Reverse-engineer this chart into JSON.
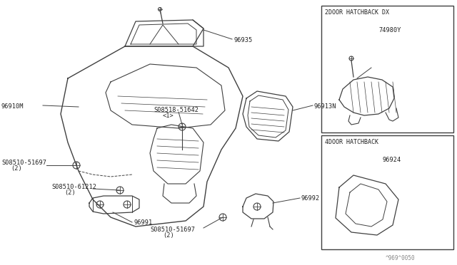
{
  "bg_color": "#ffffff",
  "line_color": "#404040",
  "text_color": "#222222",
  "watermark": "^969^0050",
  "inset1_title": "2DOOR HATCHBACK DX",
  "inset1_label": "74980Y",
  "inset2_title": "4DOOR HATCHBACK",
  "inset2_label": "96924",
  "label_96935": "96935",
  "label_96910M": "96910M",
  "label_08518": "S08518-51642",
  "label_08518b": "<1>",
  "label_96913N": "96913N",
  "label_08510a": "S08510-51697",
  "label_08510a2": "(2)",
  "label_08510b": "S08510-61212",
  "label_08510b2": "(2)",
  "label_96991": "96991",
  "label_08510c": "S08510-51697",
  "label_08510c2": "(2)",
  "label_96992": "96992"
}
